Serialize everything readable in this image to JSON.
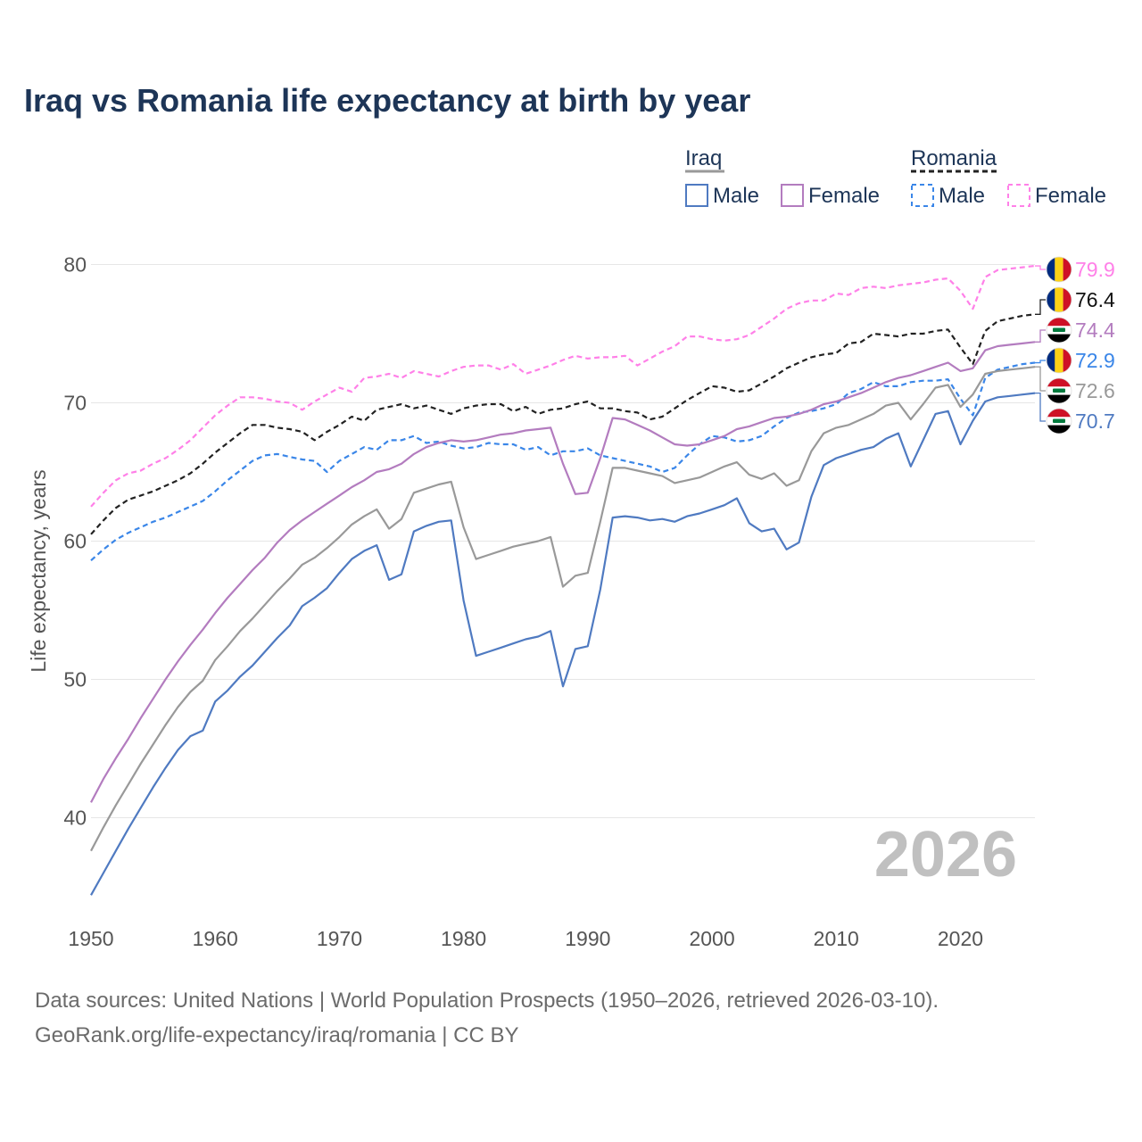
{
  "title": "Iraq vs Romania life expectancy at birth by year",
  "source_line1": "Data sources: United Nations | World Population Prospects (1950–2026, retrieved 2026-03-10).",
  "source_line2": "GeoRank.org/life-expectancy/iraq/romania | CC BY",
  "chart_data": {
    "type": "line",
    "title": "Iraq vs Romania life expectancy at birth by year",
    "xlabel": "",
    "ylabel": "Life expectancy, years",
    "xlim": [
      1950,
      2026
    ],
    "ylim": [
      33,
      83
    ],
    "xticks": [
      1950,
      1960,
      1970,
      1980,
      1990,
      2000,
      2010,
      2020
    ],
    "yticks": [
      40,
      50,
      60,
      70,
      80
    ],
    "grid": true,
    "current_year": "2026",
    "legend": {
      "groups": [
        {
          "label": "Iraq",
          "color": "#999999",
          "dash": "solid"
        },
        {
          "label": "Romania",
          "color": "#222222",
          "dash": "dashed"
        }
      ],
      "items": [
        {
          "label": "Male",
          "color": "#4f7ac1",
          "dash": "solid"
        },
        {
          "label": "Female",
          "color": "#b37cbf",
          "dash": "solid"
        },
        {
          "label": "Male",
          "color": "#3a86e8",
          "dash": "dashed"
        },
        {
          "label": "Female",
          "color": "#ff80e8",
          "dash": "dashed"
        }
      ]
    },
    "x": [
      1950,
      1951,
      1952,
      1953,
      1954,
      1955,
      1956,
      1957,
      1958,
      1959,
      1960,
      1961,
      1962,
      1963,
      1964,
      1965,
      1966,
      1967,
      1968,
      1969,
      1970,
      1971,
      1972,
      1973,
      1974,
      1975,
      1976,
      1977,
      1978,
      1979,
      1980,
      1981,
      1982,
      1983,
      1984,
      1985,
      1986,
      1987,
      1988,
      1989,
      1990,
      1991,
      1992,
      1993,
      1994,
      1995,
      1996,
      1997,
      1998,
      1999,
      2000,
      2001,
      2002,
      2003,
      2004,
      2005,
      2006,
      2007,
      2008,
      2009,
      2010,
      2011,
      2012,
      2013,
      2014,
      2015,
      2016,
      2017,
      2018,
      2019,
      2020,
      2021,
      2022,
      2023,
      2024,
      2025,
      2026
    ],
    "series": [
      {
        "name": "Romania Female",
        "country": "Romania",
        "color": "#ff80e8",
        "dash": "dashed",
        "end_label": "79.9",
        "values": [
          62.5,
          63.5,
          64.4,
          64.9,
          65.1,
          65.6,
          66.0,
          66.6,
          67.3,
          68.2,
          69.1,
          69.8,
          70.4,
          70.4,
          70.3,
          70.1,
          70.0,
          69.5,
          70.1,
          70.6,
          71.1,
          70.8,
          71.8,
          71.9,
          72.1,
          71.8,
          72.3,
          72.1,
          71.9,
          72.3,
          72.6,
          72.7,
          72.7,
          72.4,
          72.8,
          72.1,
          72.4,
          72.7,
          73.1,
          73.4,
          73.2,
          73.3,
          73.3,
          73.4,
          72.7,
          73.2,
          73.7,
          74.1,
          74.8,
          74.8,
          74.6,
          74.5,
          74.6,
          74.9,
          75.5,
          76.1,
          76.8,
          77.2,
          77.4,
          77.4,
          77.9,
          77.8,
          78.3,
          78.4,
          78.3,
          78.5,
          78.6,
          78.7,
          78.9,
          79.0,
          78.1,
          76.8,
          79.1,
          79.6,
          79.7,
          79.8,
          79.9
        ]
      },
      {
        "name": "Romania Both",
        "country": "Romania",
        "color": "#222222",
        "dash": "dashed",
        "end_label": "76.4",
        "values": [
          60.5,
          61.5,
          62.4,
          63.0,
          63.3,
          63.6,
          64.0,
          64.4,
          64.9,
          65.6,
          66.4,
          67.1,
          67.8,
          68.4,
          68.4,
          68.2,
          68.1,
          67.9,
          67.3,
          67.9,
          68.4,
          69.0,
          68.7,
          69.5,
          69.7,
          69.9,
          69.6,
          69.8,
          69.5,
          69.2,
          69.6,
          69.8,
          69.9,
          69.9,
          69.4,
          69.7,
          69.2,
          69.5,
          69.6,
          69.9,
          70.1,
          69.6,
          69.6,
          69.4,
          69.3,
          68.8,
          69.0,
          69.6,
          70.2,
          70.7,
          71.2,
          71.1,
          70.8,
          70.9,
          71.4,
          71.9,
          72.5,
          72.9,
          73.3,
          73.5,
          73.6,
          74.3,
          74.4,
          75.0,
          74.9,
          74.8,
          75.0,
          75.0,
          75.2,
          75.3,
          74.0,
          72.8,
          75.2,
          75.9,
          76.1,
          76.3,
          76.4
        ]
      },
      {
        "name": "Romania Male",
        "country": "Romania",
        "color": "#3a86e8",
        "dash": "dashed",
        "end_label": "72.9",
        "values": [
          58.6,
          59.4,
          60.1,
          60.6,
          61.0,
          61.4,
          61.7,
          62.1,
          62.5,
          62.9,
          63.6,
          64.4,
          65.1,
          65.8,
          66.2,
          66.3,
          66.1,
          65.9,
          65.8,
          65.0,
          65.8,
          66.3,
          66.8,
          66.6,
          67.3,
          67.3,
          67.6,
          67.1,
          67.2,
          66.9,
          66.7,
          66.8,
          67.1,
          67.0,
          67.0,
          66.6,
          66.8,
          66.2,
          66.5,
          66.5,
          66.7,
          66.2,
          66.0,
          65.8,
          65.6,
          65.4,
          65.0,
          65.3,
          66.2,
          67.0,
          67.6,
          67.5,
          67.2,
          67.3,
          67.6,
          68.3,
          68.9,
          69.3,
          69.4,
          69.6,
          69.9,
          70.7,
          71.0,
          71.5,
          71.2,
          71.2,
          71.5,
          71.6,
          71.6,
          71.7,
          70.3,
          69.1,
          71.8,
          72.4,
          72.6,
          72.8,
          72.9
        ]
      },
      {
        "name": "Iraq Female",
        "country": "Iraq",
        "color": "#b37cbf",
        "dash": "solid",
        "end_label": "74.4",
        "values": [
          41.1,
          42.8,
          44.3,
          45.7,
          47.2,
          48.6,
          50.0,
          51.3,
          52.5,
          53.6,
          54.8,
          55.9,
          56.9,
          57.9,
          58.8,
          59.9,
          60.8,
          61.5,
          62.1,
          62.7,
          63.3,
          63.9,
          64.4,
          65.0,
          65.2,
          65.6,
          66.3,
          66.8,
          67.1,
          67.3,
          67.2,
          67.3,
          67.5,
          67.7,
          67.8,
          68.0,
          68.1,
          68.2,
          65.6,
          63.4,
          63.5,
          66.0,
          68.9,
          68.8,
          68.4,
          68.0,
          67.5,
          67.0,
          66.9,
          67.0,
          67.3,
          67.6,
          68.1,
          68.3,
          68.6,
          68.9,
          69.0,
          69.2,
          69.5,
          69.9,
          70.1,
          70.4,
          70.7,
          71.1,
          71.5,
          71.8,
          72.0,
          72.3,
          72.6,
          72.9,
          72.3,
          72.5,
          73.8,
          74.1,
          74.2,
          74.3,
          74.4
        ]
      },
      {
        "name": "Iraq Both",
        "country": "Iraq",
        "color": "#999999",
        "dash": "solid",
        "end_label": "72.6",
        "values": [
          37.6,
          39.3,
          40.9,
          42.4,
          43.9,
          45.3,
          46.7,
          48.0,
          49.1,
          49.9,
          51.4,
          52.4,
          53.5,
          54.4,
          55.4,
          56.4,
          57.3,
          58.3,
          58.8,
          59.5,
          60.3,
          61.2,
          61.8,
          62.3,
          60.9,
          61.6,
          63.5,
          63.8,
          64.1,
          64.3,
          61.0,
          58.7,
          59.0,
          59.3,
          59.6,
          59.8,
          60.0,
          60.3,
          56.7,
          57.5,
          57.7,
          61.4,
          65.3,
          65.3,
          65.1,
          64.9,
          64.7,
          64.2,
          64.4,
          64.6,
          65.0,
          65.4,
          65.7,
          64.8,
          64.5,
          64.9,
          64.0,
          64.4,
          66.5,
          67.8,
          68.2,
          68.4,
          68.8,
          69.2,
          69.8,
          70.0,
          68.8,
          69.9,
          71.1,
          71.3,
          69.7,
          70.6,
          72.1,
          72.3,
          72.4,
          72.5,
          72.6
        ]
      },
      {
        "name": "Iraq Male",
        "country": "Iraq",
        "color": "#4f7ac1",
        "dash": "solid",
        "end_label": "70.7",
        "values": [
          34.4,
          36.0,
          37.6,
          39.2,
          40.7,
          42.2,
          43.6,
          44.9,
          45.9,
          46.3,
          48.4,
          49.2,
          50.2,
          51.0,
          52.0,
          53.0,
          53.9,
          55.3,
          55.9,
          56.6,
          57.7,
          58.7,
          59.3,
          59.7,
          57.2,
          57.6,
          60.7,
          61.1,
          61.4,
          61.5,
          55.7,
          51.7,
          52.0,
          52.3,
          52.6,
          52.9,
          53.1,
          53.5,
          49.5,
          52.2,
          52.4,
          56.5,
          61.7,
          61.8,
          61.7,
          61.5,
          61.6,
          61.4,
          61.8,
          62.0,
          62.3,
          62.6,
          63.1,
          61.3,
          60.7,
          60.9,
          59.4,
          59.9,
          63.2,
          65.5,
          66.0,
          66.3,
          66.6,
          66.8,
          67.4,
          67.8,
          65.4,
          67.3,
          69.2,
          69.4,
          67.0,
          68.7,
          70.1,
          70.4,
          70.5,
          70.6,
          70.7
        ]
      }
    ]
  }
}
